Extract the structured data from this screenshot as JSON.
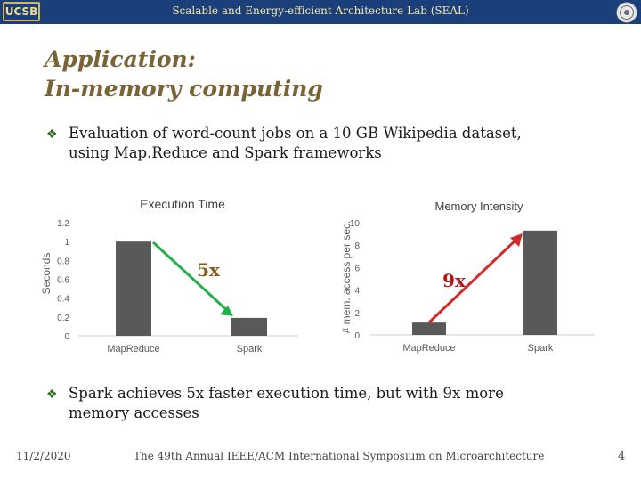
{
  "header": {
    "logo_text": "UCSB",
    "lab_title": "Scalable and Energy-efficient Architecture Lab (SEAL)"
  },
  "title": {
    "line1": "Application:",
    "line2": "In-memory computing"
  },
  "bullets": [
    {
      "lines": [
        "Evaluation of word-count jobs on a 10 GB Wikipedia dataset,",
        "using Map.Reduce and Spark frameworks"
      ]
    },
    {
      "lines": [
        "Spark achieves 5x faster execution time, but with 9x more",
        "memory accesses"
      ]
    }
  ],
  "chart_data": [
    {
      "type": "bar",
      "title": "Execution Time",
      "ylabel": "Seconds",
      "xlabel": "",
      "categories": [
        "MapReduce",
        "Spark"
      ],
      "values": [
        1.0,
        0.19
      ],
      "ylim": [
        0,
        1.2
      ],
      "yticks": [
        "0",
        "0.2",
        "0.4",
        "0.6",
        "0.8",
        "1",
        "1.2"
      ],
      "grid": false,
      "annotation": {
        "label": "5x",
        "color": "#8a5a1a",
        "arrow_color": "#22b04c"
      }
    },
    {
      "type": "bar",
      "title": "Memory Intensity",
      "ylabel": "# mem. access per sec.",
      "xlabel": "",
      "categories": [
        "MapReduce",
        "Spark"
      ],
      "values": [
        1.1,
        9.3
      ],
      "ylim": [
        0,
        10
      ],
      "yticks": [
        "0",
        "2",
        "4",
        "6",
        "8",
        "10"
      ],
      "grid": false,
      "annotation": {
        "label": "9x",
        "color": "#b01818",
        "arrow_color": "#d62828"
      }
    }
  ],
  "footer": {
    "date": "11/2/2020",
    "conference": "The 49th Annual IEEE/ACM International Symposium on Microarchitecture",
    "page": "4"
  },
  "colors": {
    "header_bg": "#1a3f7a",
    "title": "#7a6334",
    "bar": "#595959"
  }
}
